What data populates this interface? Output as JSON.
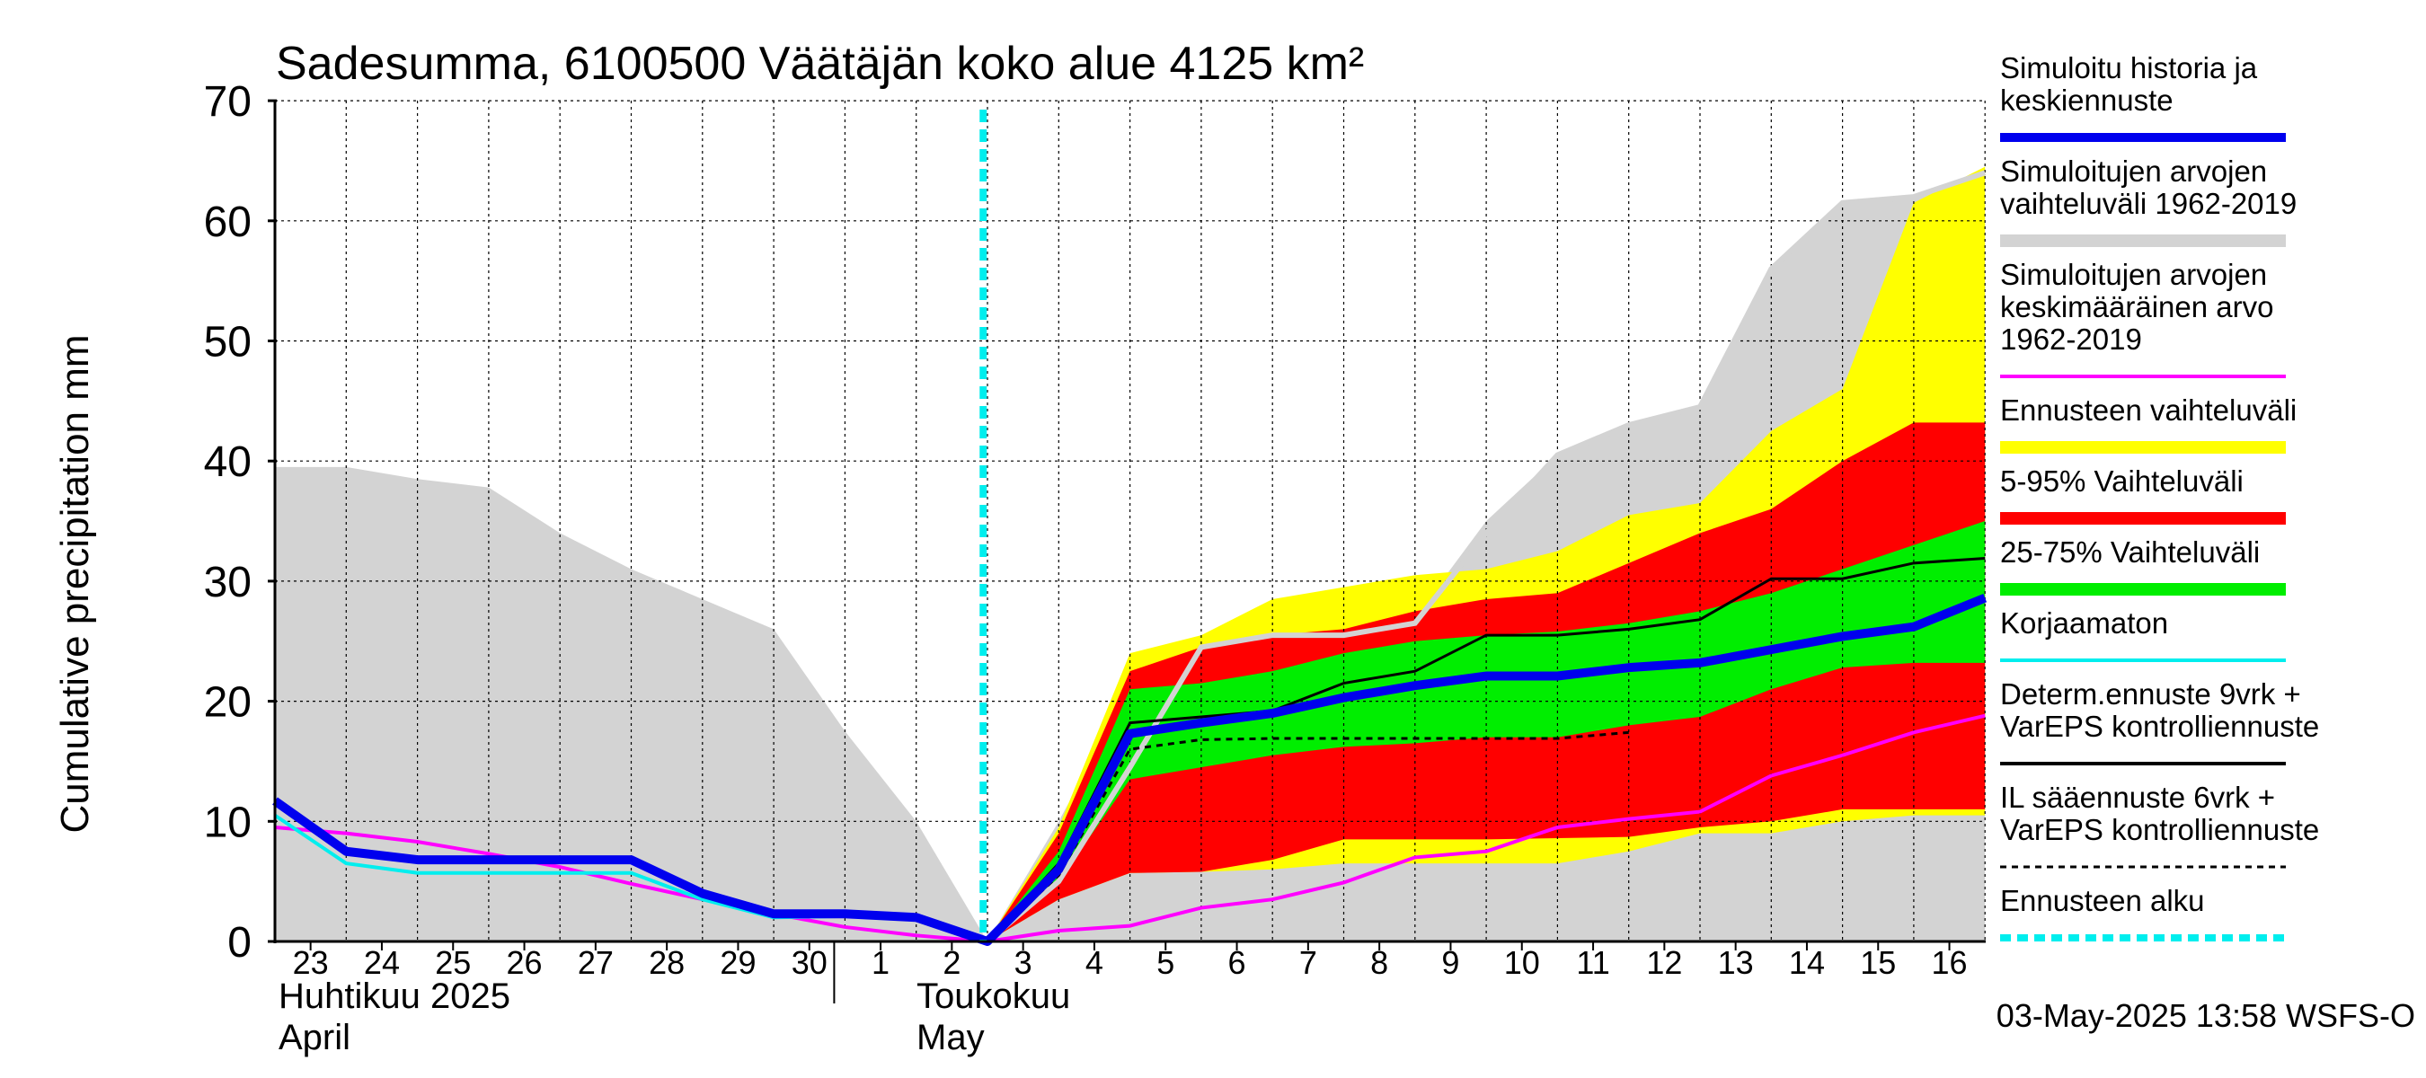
{
  "chart_data": {
    "type": "area",
    "title": "Sadesumma, 6100500 Väätäjän koko alue 4125 km²",
    "ylabel": "Cumulative precipitation   mm",
    "ylim": [
      0,
      70
    ],
    "yticks": [
      "0",
      "10",
      "20",
      "30",
      "40",
      "50",
      "60",
      "70"
    ],
    "x_day_labels": [
      "23",
      "24",
      "25",
      "26",
      "27",
      "28",
      "29",
      "30",
      "1",
      "2",
      "3",
      "4",
      "5",
      "6",
      "7",
      "8",
      "9",
      "10",
      "11",
      "12",
      "13",
      "14",
      "15",
      "16"
    ],
    "month_labels": {
      "april_fi": "Huhtikuu  2025",
      "april_en": "April",
      "may_fi": "Toukokuu",
      "may_en": "May"
    },
    "forecast_start_day": 10,
    "timestamp": "03-May-2025 13:58 WSFS-O",
    "legend": [
      {
        "id": "sim",
        "text": [
          "Simuloitu historia ja",
          "keskiennuste"
        ],
        "color": "#0000ee",
        "style": "thick"
      },
      {
        "id": "hist_range",
        "text": [
          "Simuloitujen arvojen",
          "vaihteluväli 1962-2019"
        ],
        "color": "#d3d3d3",
        "style": "band"
      },
      {
        "id": "hist_mean",
        "text": [
          "Simuloitujen arvojen",
          "keskimääräinen arvo",
          "   1962-2019"
        ],
        "color": "#ff00ff",
        "style": "line"
      },
      {
        "id": "ens_range",
        "text": [
          "Ennusteen vaihteluväli"
        ],
        "color": "#ffff00",
        "style": "band"
      },
      {
        "id": "p5_95",
        "text": [
          "5-95% Vaihteluväli"
        ],
        "color": "#ff0000",
        "style": "band"
      },
      {
        "id": "p25_75",
        "text": [
          "25-75% Vaihteluväli"
        ],
        "color": "#00ee00",
        "style": "band"
      },
      {
        "id": "uncorr",
        "text": [
          "Korjaamaton"
        ],
        "color": "#00eeee",
        "style": "line"
      },
      {
        "id": "determ",
        "text": [
          "Determ.ennuste 9vrk +",
          "VarEPS kontrolliennuste"
        ],
        "color": "#000000",
        "style": "line"
      },
      {
        "id": "il",
        "text": [
          "IL sääennuste 6vrk  +",
          "  VarEPS kontrolliennuste"
        ],
        "color": "#000000",
        "style": "dashed"
      },
      {
        "id": "start",
        "text": [
          "Ennusteen alku"
        ],
        "color": "#00eeee",
        "style": "dotted"
      }
    ],
    "series": {
      "hist_range": {
        "x": [
          0,
          1,
          2,
          3,
          4,
          5,
          6,
          7,
          8,
          9,
          10,
          11,
          12,
          13,
          14,
          15,
          16,
          17,
          18,
          19,
          20,
          21,
          22,
          23,
          24
        ],
        "low": [
          0,
          0,
          0,
          0,
          0,
          0,
          0,
          0,
          0,
          0,
          0,
          0,
          0,
          0,
          0,
          0,
          0,
          0,
          0,
          0,
          0,
          0,
          0,
          0,
          0
        ],
        "high": [
          39.5,
          39.5,
          38.5,
          37.8,
          34,
          31,
          28.5,
          26,
          17.5,
          10,
          0,
          10,
          21,
          25,
          26,
          26,
          27,
          35,
          40.5,
          43,
          44.5,
          56,
          61.5,
          62,
          64
        ]
      },
      "ens_range": {
        "x": [
          10,
          11,
          12,
          13,
          14,
          15,
          16,
          17,
          18,
          19,
          20,
          21,
          22,
          23,
          24
        ],
        "low": [
          0,
          3.5,
          5.7,
          5.8,
          6,
          6.5,
          6.5,
          6.5,
          6.5,
          7.5,
          9,
          9,
          10,
          10.5,
          10.5
        ],
        "high": [
          0,
          9.5,
          24,
          25.5,
          28.5,
          29.5,
          30.5,
          31,
          32.5,
          35.5,
          36.5,
          42.5,
          46,
          61.5,
          64.5
        ]
      },
      "p5_95": {
        "x": [
          10,
          11,
          12,
          13,
          14,
          15,
          16,
          17,
          18,
          19,
          20,
          21,
          22,
          23,
          24
        ],
        "low": [
          0,
          3.5,
          5.7,
          5.8,
          6.8,
          8.5,
          8.5,
          8.5,
          8.6,
          8.7,
          9.5,
          10,
          11,
          11,
          11
        ],
        "high": [
          0,
          9,
          22.5,
          24.5,
          25.5,
          26,
          27.5,
          28.5,
          29,
          31.5,
          34,
          36,
          40,
          43.2,
          43.2
        ]
      },
      "p25_75": {
        "x": [
          10,
          11,
          12,
          13,
          14,
          15,
          16,
          17,
          18,
          19,
          20,
          21,
          22,
          23,
          24
        ],
        "low": [
          0,
          5,
          13.5,
          14.5,
          15.5,
          16.2,
          16.5,
          17,
          17,
          18,
          18.7,
          21,
          22.8,
          23.2,
          23.2
        ],
        "high": [
          0,
          7.5,
          21,
          21.5,
          22.5,
          24,
          25,
          25.5,
          25.8,
          26.5,
          27.5,
          29,
          31,
          33,
          35
        ]
      },
      "sim": {
        "x": [
          0,
          1,
          2,
          3,
          4,
          5,
          6,
          7,
          8,
          9,
          10,
          11,
          12,
          13,
          14,
          15,
          16,
          17,
          18,
          19,
          20,
          21,
          22,
          23,
          24
        ],
        "y": [
          11.7,
          7.5,
          6.8,
          6.8,
          6.8,
          6.8,
          4,
          2.3,
          2.3,
          2,
          0,
          6,
          17.3,
          18.2,
          19,
          20.3,
          21.3,
          22.1,
          22.1,
          22.8,
          23.2,
          24.3,
          25.4,
          26.2,
          28.6
        ]
      },
      "hist_mean": {
        "x": [
          0,
          1,
          2,
          3,
          4,
          5,
          6,
          7,
          8,
          9,
          10,
          11,
          12,
          13,
          14,
          15,
          16,
          17,
          18,
          19,
          20,
          21,
          22,
          23,
          24
        ],
        "y": [
          9.5,
          9,
          8.3,
          7.3,
          6.2,
          4.8,
          3.5,
          2.3,
          1.2,
          0.5,
          0,
          0.9,
          1.3,
          2.8,
          3.5,
          4.9,
          7,
          7.5,
          9.5,
          10.2,
          10.8,
          13.8,
          15.5,
          17.4,
          18.8
        ]
      },
      "uncorr": {
        "x": [
          0,
          1,
          2,
          3,
          4,
          5,
          6,
          7,
          8,
          9,
          10
        ],
        "y": [
          10.5,
          6.5,
          5.7,
          5.7,
          5.7,
          5.7,
          3.5,
          2,
          2.1,
          1.8,
          0
        ]
      },
      "hist_other_gray": {
        "x": [
          10,
          11,
          12,
          13,
          14,
          15,
          16,
          17,
          18,
          19,
          20,
          21,
          22,
          23,
          24
        ],
        "y": [
          0,
          5,
          14.5,
          24.5,
          25.5,
          25.5,
          26.5,
          34,
          40.5,
          43,
          44.5,
          56,
          61.5,
          62,
          64
        ]
      },
      "determ": {
        "x": [
          10,
          11,
          12,
          13,
          14,
          15,
          16,
          17,
          18,
          19,
          20,
          21,
          22,
          23,
          24
        ],
        "y": [
          0,
          6.5,
          18.2,
          18.7,
          19.2,
          21.5,
          22.5,
          25.5,
          25.5,
          26,
          26.8,
          30.2,
          30.2,
          31.5,
          31.9
        ]
      },
      "il": {
        "x": [
          10,
          11,
          12,
          13,
          14,
          15,
          16,
          17,
          18,
          19
        ],
        "y": [
          0,
          5.5,
          16,
          16.8,
          16.9,
          16.9,
          16.9,
          16.9,
          16.9,
          17.4
        ]
      }
    }
  }
}
